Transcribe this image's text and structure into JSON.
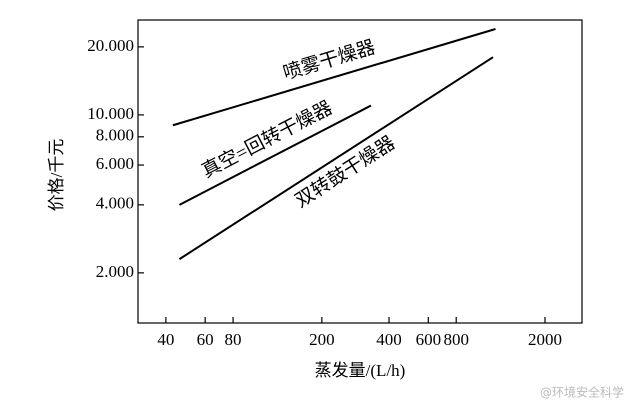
{
  "chart_data": {
    "type": "line",
    "xlabel": "蒸发量/(L/h)",
    "ylabel": "价格/千元",
    "xscale": "log",
    "yscale": "log",
    "xlim": [
      30,
      2930
    ],
    "ylim": [
      1200,
      26300
    ],
    "xticks": [
      40,
      60,
      80,
      200,
      400,
      600,
      800,
      2000
    ],
    "yticks": [
      {
        "value": 2000,
        "label": "2.000"
      },
      {
        "value": 4000,
        "label": "4.000"
      },
      {
        "value": 6000,
        "label": "6.000"
      },
      {
        "value": 8000,
        "label": "8.000"
      },
      {
        "value": 10000,
        "label": "10.000"
      },
      {
        "value": 20000,
        "label": "20.000"
      }
    ],
    "series": [
      {
        "name": "喷雾干燥器",
        "color": "#000000",
        "x": [
          43,
          1200
        ],
        "values": [
          9000,
          24000
        ]
      },
      {
        "name": "真空=回转干燥器",
        "color": "#000000",
        "x": [
          46,
          332
        ],
        "values": [
          4000,
          11000
        ]
      },
      {
        "name": "双转鼓干燥器",
        "color": "#000000",
        "x": [
          46,
          1170
        ],
        "values": [
          2300,
          18000
        ]
      }
    ],
    "watermark": "@环境安全科学"
  }
}
